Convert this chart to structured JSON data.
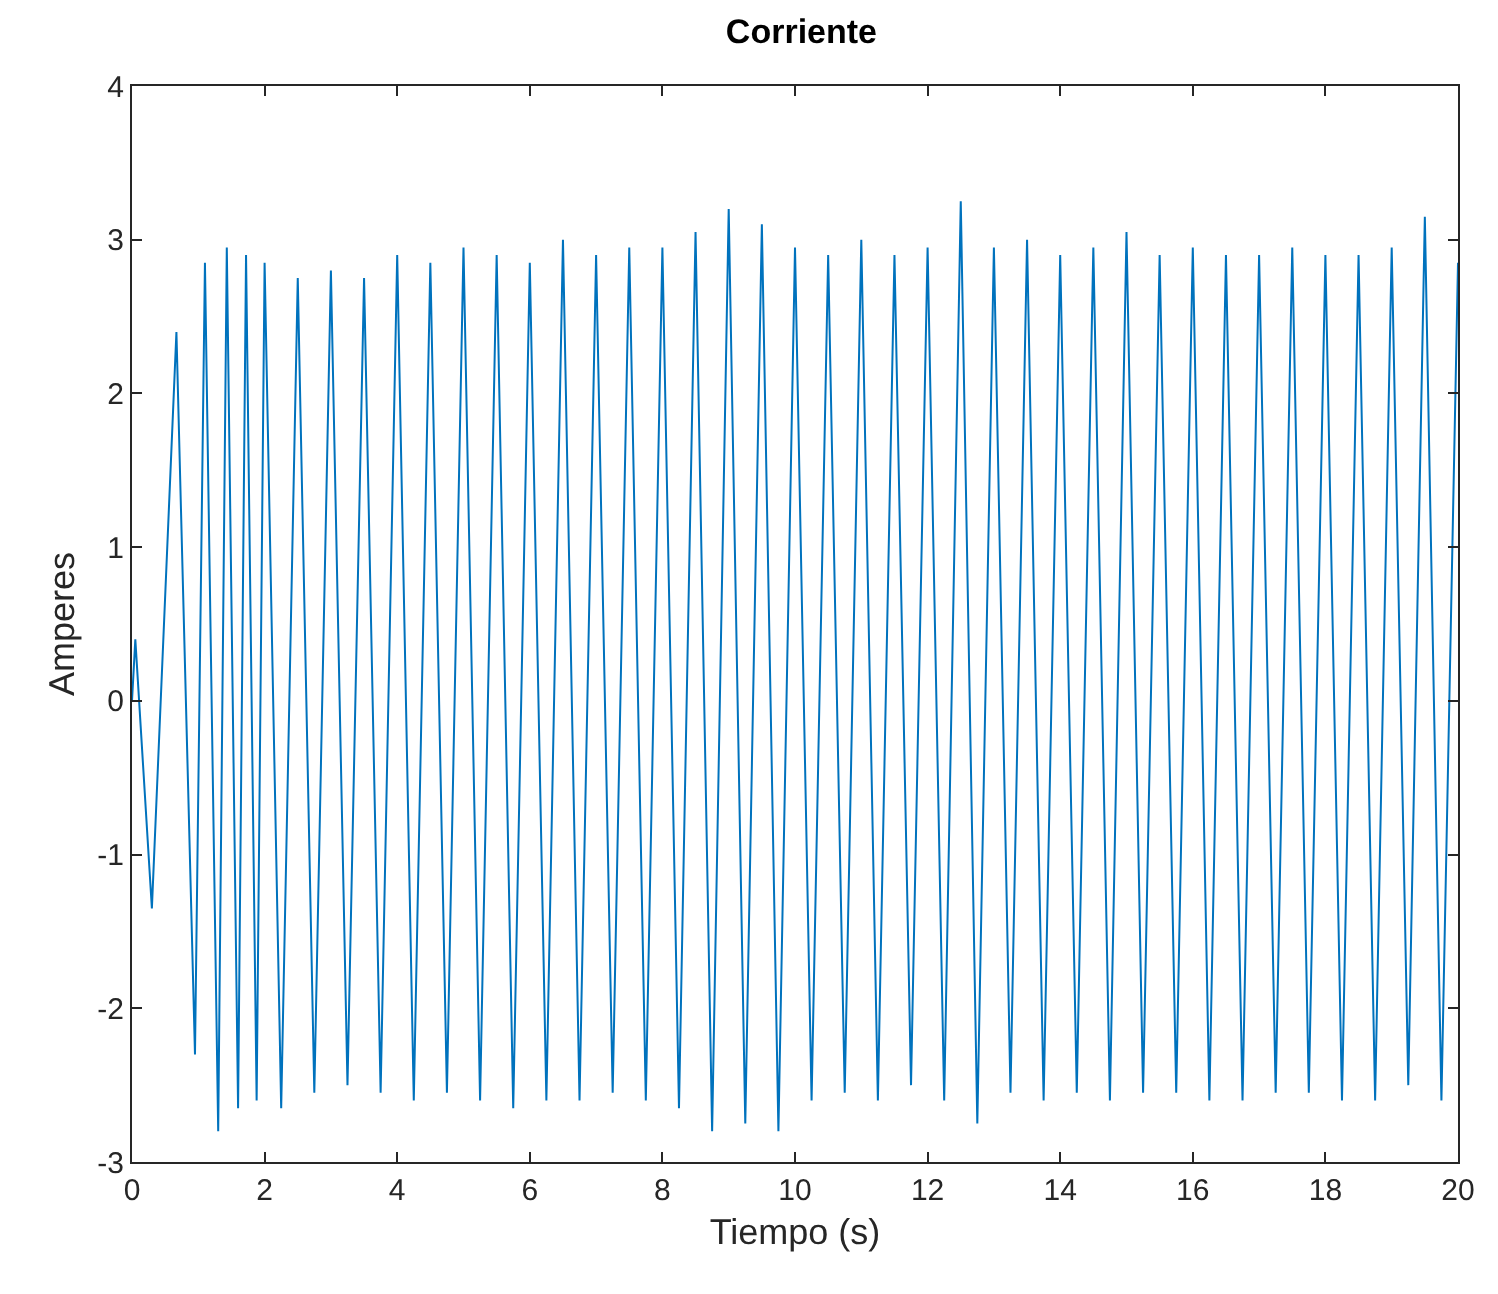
{
  "chart_data": {
    "type": "line",
    "title": "Corriente",
    "xlabel": "Tiempo (s)",
    "ylabel": "Amperes",
    "x": [
      0,
      0.05,
      0.3,
      0.67,
      0.95,
      1.1,
      1.3,
      1.43,
      1.6,
      1.72,
      1.88,
      2.0,
      2.25,
      2.5,
      2.75,
      3.0,
      3.25,
      3.5,
      3.75,
      4.0,
      4.25,
      4.5,
      4.75,
      5.0,
      5.25,
      5.5,
      5.75,
      6.0,
      6.25,
      6.5,
      6.75,
      7.0,
      7.25,
      7.5,
      7.75,
      8.0,
      8.25,
      8.5,
      8.75,
      9.0,
      9.25,
      9.5,
      9.75,
      10.0,
      10.25,
      10.5,
      10.75,
      11.0,
      11.25,
      11.5,
      11.75,
      12.0,
      12.25,
      12.5,
      12.75,
      13.0,
      13.25,
      13.5,
      13.75,
      14.0,
      14.25,
      14.5,
      14.75,
      15.0,
      15.25,
      15.5,
      15.75,
      16.0,
      16.25,
      16.5,
      16.75,
      17.0,
      17.25,
      17.5,
      17.75,
      18.0,
      18.25,
      18.5,
      18.75,
      19.0,
      19.25,
      19.5,
      19.75,
      20.0
    ],
    "series": [
      {
        "color": "#0072bd",
        "values": [
          0,
          0.4,
          -1.35,
          2.4,
          -2.3,
          2.85,
          -2.8,
          2.95,
          -2.65,
          2.9,
          -2.6,
          2.85,
          -2.65,
          2.75,
          -2.55,
          2.8,
          -2.5,
          2.75,
          -2.55,
          2.9,
          -2.6,
          2.85,
          -2.55,
          2.95,
          -2.6,
          2.9,
          -2.65,
          2.85,
          -2.6,
          3.0,
          -2.6,
          2.9,
          -2.55,
          2.95,
          -2.6,
          2.95,
          -2.65,
          3.05,
          -2.8,
          3.2,
          -2.75,
          3.1,
          -2.8,
          2.95,
          -2.6,
          2.9,
          -2.55,
          3.0,
          -2.6,
          2.9,
          -2.5,
          2.95,
          -2.6,
          3.25,
          -2.75,
          2.95,
          -2.55,
          3.0,
          -2.6,
          2.9,
          -2.55,
          2.95,
          -2.6,
          3.05,
          -2.55,
          2.9,
          -2.55,
          2.95,
          -2.6,
          2.9,
          -2.6,
          2.9,
          -2.55,
          2.95,
          -2.55,
          2.9,
          -2.6,
          2.9,
          -2.6,
          2.95,
          -2.5,
          3.15,
          -2.6,
          2.85
        ]
      }
    ],
    "xlim": [
      0,
      20
    ],
    "xticks": [
      0,
      2,
      4,
      6,
      8,
      10,
      12,
      14,
      16,
      18,
      20
    ],
    "ylim": [
      -3,
      4
    ],
    "yticks": [
      -3,
      -2,
      -1,
      0,
      1,
      2,
      3,
      4
    ],
    "line_style": "solid"
  }
}
